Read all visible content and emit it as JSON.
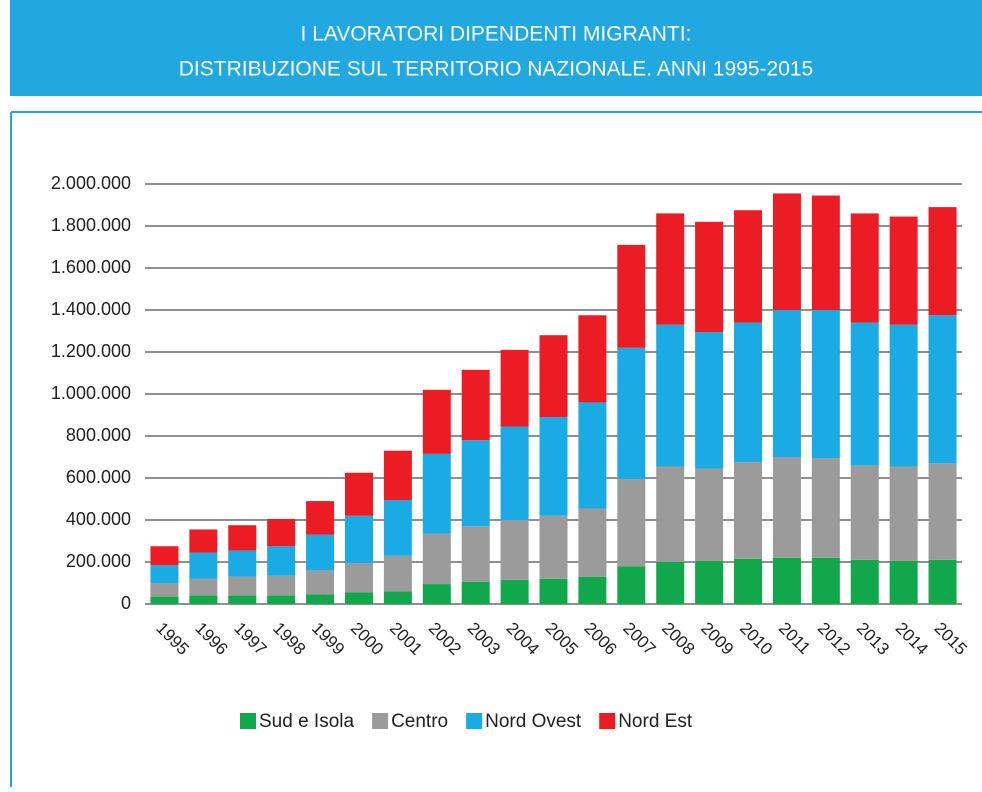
{
  "chart_data": {
    "type": "stacked_bar",
    "title": [
      "I LAVORATORI DIPENDENTI MIGRANTI:",
      "DISTRIBUZIONE SUL TERRITORIO NAZIONALE. ANNI 1995-2015"
    ],
    "categories": [
      "1995",
      "1996",
      "1997",
      "1998",
      "1999",
      "2000",
      "2001",
      "2002",
      "2003",
      "2004",
      "2005",
      "2006",
      "2007",
      "2008",
      "2009",
      "2010",
      "2011",
      "2012",
      "2013",
      "2014",
      "2015"
    ],
    "series": [
      {
        "name": "Sud e Isola",
        "color": "#10a84a",
        "values": [
          35000,
          40000,
          40000,
          40000,
          45000,
          55000,
          60000,
          95000,
          105000,
          115000,
          120000,
          130000,
          180000,
          200000,
          205000,
          215000,
          220000,
          220000,
          210000,
          205000,
          210000
        ]
      },
      {
        "name": "Centro",
        "color": "#9c9b9b",
        "values": [
          65000,
          80000,
          90000,
          95000,
          115000,
          140000,
          170000,
          240000,
          265000,
          285000,
          300000,
          325000,
          415000,
          455000,
          440000,
          460000,
          480000,
          475000,
          450000,
          450000,
          460000
        ]
      },
      {
        "name": "Nord Ovest",
        "color": "#1aaae4",
        "values": [
          85000,
          125000,
          125000,
          140000,
          170000,
          225000,
          265000,
          380000,
          410000,
          445000,
          470000,
          505000,
          625000,
          675000,
          650000,
          665000,
          700000,
          705000,
          680000,
          675000,
          705000
        ]
      },
      {
        "name": "Nord Est",
        "color": "#ec1c24",
        "values": [
          90000,
          110000,
          120000,
          130000,
          160000,
          205000,
          235000,
          305000,
          335000,
          365000,
          390000,
          415000,
          490000,
          530000,
          525000,
          535000,
          555000,
          545000,
          520000,
          515000,
          515000
        ]
      }
    ],
    "ylim": [
      0,
      2000000
    ],
    "yticks": [
      0,
      {
        "value": 200000,
        "label": "200.000"
      },
      {
        "value": 400000,
        "label": "400.000"
      },
      {
        "value": 600000,
        "label": "600.000"
      },
      {
        "value": 800000,
        "label": "800.000"
      },
      {
        "value": 1000000,
        "label": "1.000.000"
      },
      {
        "value": 1200000,
        "label": "1.200.000"
      },
      {
        "value": 1400000,
        "label": "1.400.000"
      },
      {
        "value": 1600000,
        "label": "1.600.000"
      },
      {
        "value": 1800000,
        "label": "1.800.000"
      },
      {
        "value": 2000000,
        "label": "2.000.000"
      }
    ],
    "grid": true
  }
}
